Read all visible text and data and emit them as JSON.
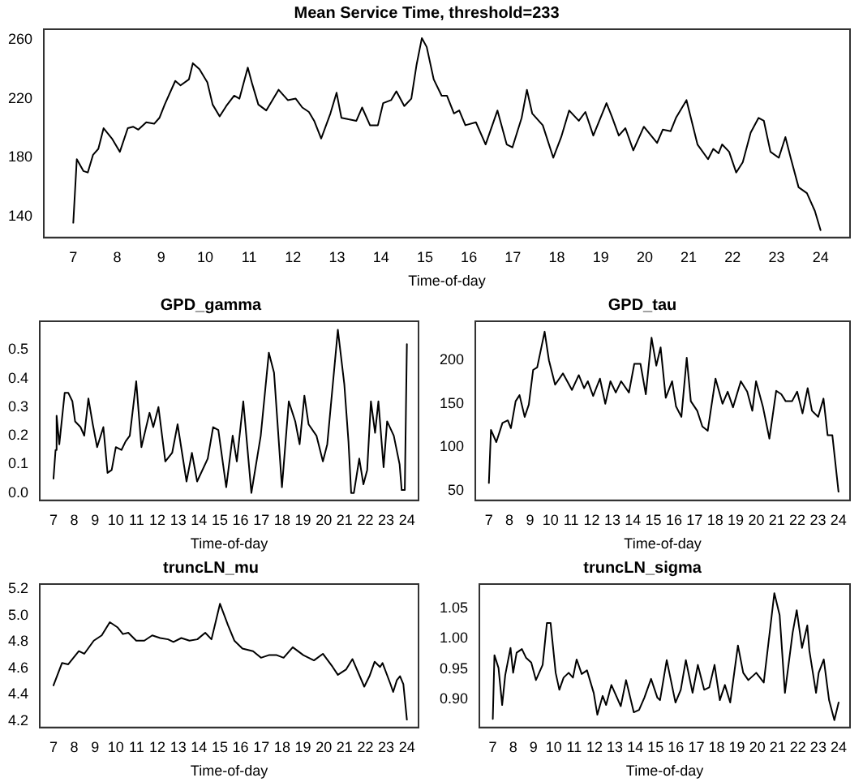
{
  "chart_data": [
    {
      "type": "line",
      "title": "Mean Service Time, threshold=233",
      "xlabel": "Time-of-day",
      "color": "#000000",
      "xlim": [
        6.33,
        24.67
      ],
      "xticks": [
        7,
        8,
        9,
        10,
        11,
        12,
        13,
        14,
        15,
        16,
        17,
        18,
        19,
        20,
        21,
        22,
        23,
        24
      ],
      "ylim": [
        126,
        267
      ],
      "yticks": [
        140,
        180,
        220,
        260
      ],
      "x": [
        7.0,
        7.08,
        7.23,
        7.33,
        7.45,
        7.57,
        7.69,
        7.88,
        8.06,
        8.24,
        8.36,
        8.48,
        8.66,
        8.84,
        8.96,
        9.08,
        9.32,
        9.44,
        9.63,
        9.72,
        9.87,
        10.05,
        10.17,
        10.33,
        10.48,
        10.66,
        10.78,
        10.97,
        11.07,
        11.21,
        11.39,
        11.67,
        11.88,
        12.06,
        12.21,
        12.36,
        12.48,
        12.64,
        12.85,
        12.99,
        13.1,
        13.26,
        13.44,
        13.57,
        13.75,
        13.93,
        14.05,
        14.23,
        14.35,
        14.53,
        14.69,
        14.81,
        14.93,
        15.04,
        15.2,
        15.38,
        15.5,
        15.66,
        15.78,
        15.92,
        16.16,
        16.38,
        16.65,
        16.86,
        16.99,
        17.2,
        17.32,
        17.44,
        17.68,
        17.92,
        18.1,
        18.28,
        18.5,
        18.65,
        18.83,
        19.13,
        19.25,
        19.41,
        19.56,
        19.74,
        19.98,
        20.28,
        20.41,
        20.59,
        20.71,
        20.95,
        21.2,
        21.44,
        21.56,
        21.68,
        21.76,
        21.92,
        22.08,
        22.23,
        22.41,
        22.59,
        22.71,
        22.86,
        23.05,
        23.2,
        23.32,
        23.5,
        23.69,
        23.87,
        24.0
      ],
      "values": [
        136,
        179,
        171,
        170,
        182,
        186,
        200,
        193,
        184,
        200,
        201,
        199,
        204,
        203,
        207,
        216,
        232,
        229,
        233,
        244,
        240,
        231,
        216,
        208,
        215,
        222,
        220,
        241,
        230,
        216,
        212,
        226,
        219,
        220,
        214,
        211,
        205,
        193,
        210,
        224,
        207,
        206,
        205,
        214,
        202,
        202,
        217,
        219,
        225,
        215,
        220,
        243,
        261,
        255,
        233,
        222,
        222,
        210,
        212,
        202,
        204,
        189,
        212,
        189,
        187,
        207,
        226,
        210,
        202,
        180,
        194,
        212,
        205,
        211,
        195,
        217,
        208,
        195,
        200,
        185,
        201,
        190,
        199,
        198,
        207,
        219,
        189,
        179,
        186,
        183,
        189,
        184,
        170,
        177,
        197,
        207,
        205,
        184,
        180,
        194,
        180,
        160,
        156,
        144,
        131
      ]
    },
    {
      "type": "line",
      "title": "GPD_gamma",
      "xlabel": "Time-of-day",
      "color": "#000000",
      "xlim": [
        6.34,
        24.56
      ],
      "xticks": [
        7,
        8,
        9,
        10,
        11,
        12,
        13,
        14,
        15,
        16,
        17,
        18,
        19,
        20,
        21,
        22,
        23,
        24
      ],
      "ylim": [
        -0.026,
        0.6
      ],
      "yticks": [
        {
          "value": 0,
          "label": "0.0"
        },
        0.1,
        0.2,
        0.3,
        0.4,
        0.5
      ],
      "x": [
        7.0,
        7.1,
        7.15,
        7.28,
        7.54,
        7.71,
        7.91,
        8.04,
        8.3,
        8.48,
        8.68,
        8.89,
        9.1,
        9.4,
        9.6,
        9.8,
        10.0,
        10.27,
        10.47,
        10.67,
        10.98,
        11.23,
        11.62,
        11.8,
        12.05,
        12.38,
        12.71,
        12.97,
        13.4,
        13.66,
        13.91,
        14.42,
        14.68,
        14.93,
        15.31,
        15.62,
        15.82,
        16.13,
        16.52,
        16.97,
        17.36,
        17.61,
        17.99,
        18.32,
        18.63,
        18.84,
        19.07,
        19.27,
        19.65,
        19.96,
        20.17,
        20.68,
        20.99,
        21.19,
        21.32,
        21.45,
        21.71,
        21.91,
        22.09,
        22.27,
        22.47,
        22.63,
        22.88,
        23.05,
        23.37,
        23.65,
        23.75,
        23.9,
        24.0
      ],
      "values": [
        0.05,
        0.15,
        0.27,
        0.17,
        0.35,
        0.35,
        0.32,
        0.25,
        0.23,
        0.2,
        0.33,
        0.24,
        0.16,
        0.23,
        0.07,
        0.08,
        0.16,
        0.15,
        0.18,
        0.2,
        0.39,
        0.16,
        0.28,
        0.23,
        0.3,
        0.11,
        0.14,
        0.24,
        0.04,
        0.14,
        0.04,
        0.12,
        0.23,
        0.22,
        0.02,
        0.2,
        0.11,
        0.32,
        0.0,
        0.2,
        0.49,
        0.42,
        0.02,
        0.32,
        0.25,
        0.17,
        0.34,
        0.24,
        0.2,
        0.11,
        0.17,
        0.57,
        0.38,
        0.18,
        0.0,
        0.0,
        0.12,
        0.03,
        0.08,
        0.32,
        0.21,
        0.32,
        0.09,
        0.25,
        0.2,
        0.1,
        0.01,
        0.01,
        0.52
      ]
    },
    {
      "type": "line",
      "title": "GPD_tau",
      "xlabel": "Time-of-day",
      "color": "#000000",
      "xlim": [
        6.34,
        24.56
      ],
      "xticks": [
        7,
        8,
        9,
        10,
        11,
        12,
        13,
        14,
        15,
        16,
        17,
        18,
        19,
        20,
        21,
        22,
        23,
        24
      ],
      "ylim": [
        39,
        245
      ],
      "yticks": [
        50,
        100,
        150,
        200
      ],
      "x": [
        7.0,
        7.1,
        7.36,
        7.66,
        7.92,
        8.07,
        8.3,
        8.49,
        8.74,
        8.94,
        9.15,
        9.35,
        9.71,
        9.92,
        10.22,
        10.6,
        11.04,
        11.37,
        11.63,
        11.81,
        12.07,
        12.4,
        12.66,
        12.91,
        13.17,
        13.43,
        13.81,
        14.07,
        14.37,
        14.63,
        14.91,
        15.14,
        15.35,
        15.6,
        15.91,
        16.1,
        16.36,
        16.62,
        16.82,
        17.13,
        17.38,
        17.64,
        18.02,
        18.36,
        18.61,
        18.87,
        19.25,
        19.56,
        19.81,
        19.99,
        20.33,
        20.64,
        20.97,
        21.22,
        21.43,
        21.74,
        21.99,
        22.25,
        22.5,
        22.71,
        23.01,
        23.27,
        23.47,
        23.7,
        24.0
      ],
      "values": [
        59,
        120,
        106,
        128,
        131,
        122,
        153,
        160,
        135,
        149,
        189,
        192,
        233,
        200,
        172,
        185,
        166,
        183,
        168,
        176,
        159,
        179,
        150,
        176,
        163,
        176,
        163,
        196,
        196,
        161,
        226,
        194,
        215,
        157,
        176,
        147,
        135,
        203,
        153,
        142,
        124,
        119,
        179,
        150,
        164,
        146,
        176,
        164,
        142,
        176,
        146,
        110,
        165,
        161,
        153,
        153,
        164,
        139,
        168,
        142,
        135,
        156,
        114,
        114,
        49
      ]
    },
    {
      "type": "line",
      "title": "truncLN_mu",
      "xlabel": "Time-of-day",
      "color": "#000000",
      "xlim": [
        6.34,
        24.56
      ],
      "xticks": [
        7,
        8,
        9,
        10,
        11,
        12,
        13,
        14,
        15,
        16,
        17,
        18,
        19,
        20,
        21,
        22,
        23,
        24
      ],
      "ylim": [
        4.15,
        5.24
      ],
      "yticks": [
        4.2,
        4.4,
        4.6,
        4.8,
        {
          "value": 5,
          "label": "5.0"
        },
        5.2
      ],
      "x": [
        7.0,
        7.41,
        7.71,
        8.22,
        8.48,
        8.94,
        9.32,
        9.71,
        10.09,
        10.34,
        10.6,
        10.98,
        11.37,
        11.75,
        12.13,
        12.51,
        12.77,
        13.15,
        13.54,
        13.92,
        14.3,
        14.6,
        15.01,
        15.39,
        15.7,
        16.09,
        16.6,
        16.98,
        17.36,
        17.74,
        18.07,
        18.51,
        19.02,
        19.53,
        19.96,
        20.43,
        20.68,
        21.07,
        21.38,
        21.95,
        22.2,
        22.45,
        22.71,
        22.83,
        23.21,
        23.34,
        23.52,
        23.67,
        23.83,
        24.0
      ],
      "values": [
        4.47,
        4.64,
        4.63,
        4.73,
        4.71,
        4.81,
        4.85,
        4.95,
        4.91,
        4.86,
        4.87,
        4.81,
        4.81,
        4.85,
        4.83,
        4.82,
        4.8,
        4.83,
        4.81,
        4.82,
        4.87,
        4.82,
        5.09,
        4.93,
        4.81,
        4.75,
        4.73,
        4.68,
        4.7,
        4.7,
        4.68,
        4.76,
        4.7,
        4.66,
        4.71,
        4.61,
        4.55,
        4.59,
        4.67,
        4.46,
        4.54,
        4.65,
        4.61,
        4.64,
        4.48,
        4.42,
        4.51,
        4.54,
        4.48,
        4.21
      ]
    },
    {
      "type": "line",
      "title": "truncLN_sigma",
      "xlabel": "Time-of-day",
      "color": "#000000",
      "xlim": [
        6.34,
        24.56
      ],
      "xticks": [
        7,
        8,
        9,
        10,
        11,
        12,
        13,
        14,
        15,
        16,
        17,
        18,
        19,
        20,
        21,
        22,
        23,
        24
      ],
      "ylim": [
        0.854,
        1.09
      ],
      "yticks": [
        {
          "value": 0.9,
          "label": "0.90"
        },
        0.95,
        {
          "value": 1,
          "label": "1.00"
        },
        1.05
      ],
      "x": [
        7.0,
        7.08,
        7.28,
        7.46,
        7.61,
        7.87,
        8.0,
        8.17,
        8.43,
        8.63,
        8.89,
        9.12,
        9.45,
        9.66,
        9.84,
        10.09,
        10.27,
        10.48,
        10.73,
        10.94,
        11.12,
        11.37,
        11.63,
        11.96,
        12.14,
        12.4,
        12.57,
        12.83,
        13.29,
        13.55,
        13.93,
        14.19,
        14.45,
        14.78,
        15.09,
        15.22,
        15.55,
        15.98,
        16.24,
        16.49,
        16.82,
        17.08,
        17.39,
        17.64,
        17.9,
        18.16,
        18.41,
        18.67,
        19.05,
        19.31,
        19.56,
        19.95,
        20.32,
        20.84,
        21.1,
        21.36,
        21.74,
        21.94,
        22.2,
        22.46,
        22.56,
        22.89,
        23.02,
        23.27,
        23.53,
        23.79,
        24.0
      ],
      "values": [
        0.868,
        0.973,
        0.952,
        0.891,
        0.94,
        0.985,
        0.944,
        0.977,
        0.983,
        0.969,
        0.961,
        0.932,
        0.957,
        1.026,
        1.026,
        0.944,
        0.916,
        0.936,
        0.944,
        0.936,
        0.966,
        0.942,
        0.948,
        0.911,
        0.875,
        0.906,
        0.891,
        0.924,
        0.889,
        0.932,
        0.879,
        0.883,
        0.903,
        0.934,
        0.903,
        0.899,
        0.965,
        0.895,
        0.916,
        0.965,
        0.911,
        0.957,
        0.916,
        0.92,
        0.957,
        0.899,
        0.924,
        0.895,
        0.989,
        0.944,
        0.932,
        0.944,
        0.928,
        1.075,
        1.039,
        0.911,
        1.01,
        1.047,
        0.985,
        1.022,
        0.981,
        0.911,
        0.944,
        0.966,
        0.899,
        0.866,
        0.895
      ]
    }
  ]
}
